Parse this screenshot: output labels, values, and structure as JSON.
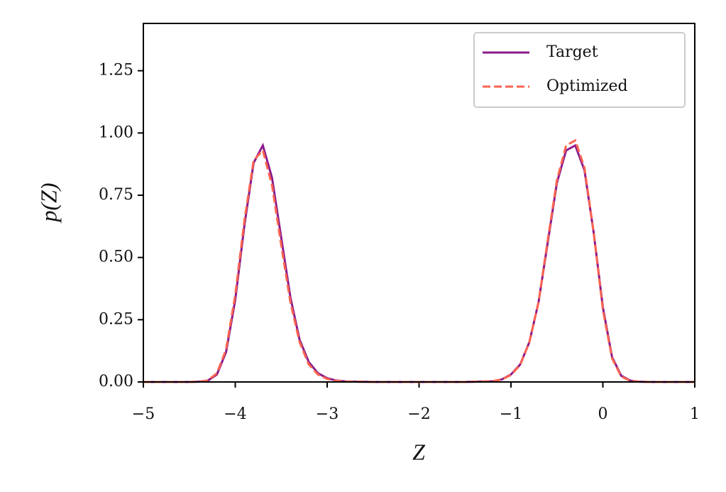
{
  "chart_data": {
    "type": "line",
    "xlabel": "Z",
    "ylabel": "p(Z)",
    "x": [
      -5,
      -4.5,
      -4.4,
      -4.3,
      -4.2,
      -4.1,
      -4.0,
      -3.9,
      -3.8,
      -3.7,
      -3.6,
      -3.5,
      -3.4,
      -3.3,
      -3.2,
      -3.1,
      -3.0,
      -2.9,
      -2.8,
      -2.5,
      -2,
      -1.5,
      -1.2,
      -1.1,
      -1.0,
      -0.9,
      -0.8,
      -0.7,
      -0.6,
      -0.5,
      -0.4,
      -0.3,
      -0.2,
      -0.1,
      0,
      0.1,
      0.2,
      0.3,
      0.4,
      0.5,
      1
    ],
    "series": [
      {
        "name": "Target",
        "color": "#8b1a8b",
        "dashed": false,
        "values": [
          0,
          0,
          0.001,
          0.005,
          0.03,
          0.12,
          0.33,
          0.63,
          0.88,
          0.95,
          0.82,
          0.58,
          0.34,
          0.17,
          0.08,
          0.035,
          0.015,
          0.006,
          0.002,
          0,
          0,
          0,
          0.003,
          0.01,
          0.03,
          0.07,
          0.16,
          0.32,
          0.56,
          0.8,
          0.93,
          0.95,
          0.85,
          0.6,
          0.3,
          0.1,
          0.025,
          0.005,
          0.001,
          0,
          0
        ]
      },
      {
        "name": "Optimized",
        "color": "#fa6450",
        "dashed": true,
        "values": [
          0,
          0,
          0.001,
          0.006,
          0.035,
          0.13,
          0.35,
          0.65,
          0.89,
          0.93,
          0.79,
          0.55,
          0.32,
          0.16,
          0.07,
          0.03,
          0.012,
          0.005,
          0.002,
          0,
          0,
          0,
          0.003,
          0.01,
          0.028,
          0.068,
          0.16,
          0.32,
          0.57,
          0.81,
          0.95,
          0.97,
          0.86,
          0.6,
          0.29,
          0.095,
          0.022,
          0.004,
          0.001,
          0,
          0
        ]
      }
    ],
    "xlim": [
      -5,
      1
    ],
    "xticks": [
      {
        "value": -5,
        "label": "−5"
      },
      {
        "value": -4,
        "label": "−4"
      },
      {
        "value": -3,
        "label": "−3"
      },
      {
        "value": -2,
        "label": "−2"
      },
      {
        "value": -1,
        "label": "−1"
      },
      0,
      1
    ],
    "ylim": [
      0,
      1.44
    ],
    "yticks": [
      {
        "value": 0,
        "label": "0.00"
      },
      0.25,
      {
        "value": 0.5,
        "label": "0.50"
      },
      0.75,
      {
        "value": 1,
        "label": "1.00"
      },
      1.25
    ],
    "legend": "upper right"
  }
}
